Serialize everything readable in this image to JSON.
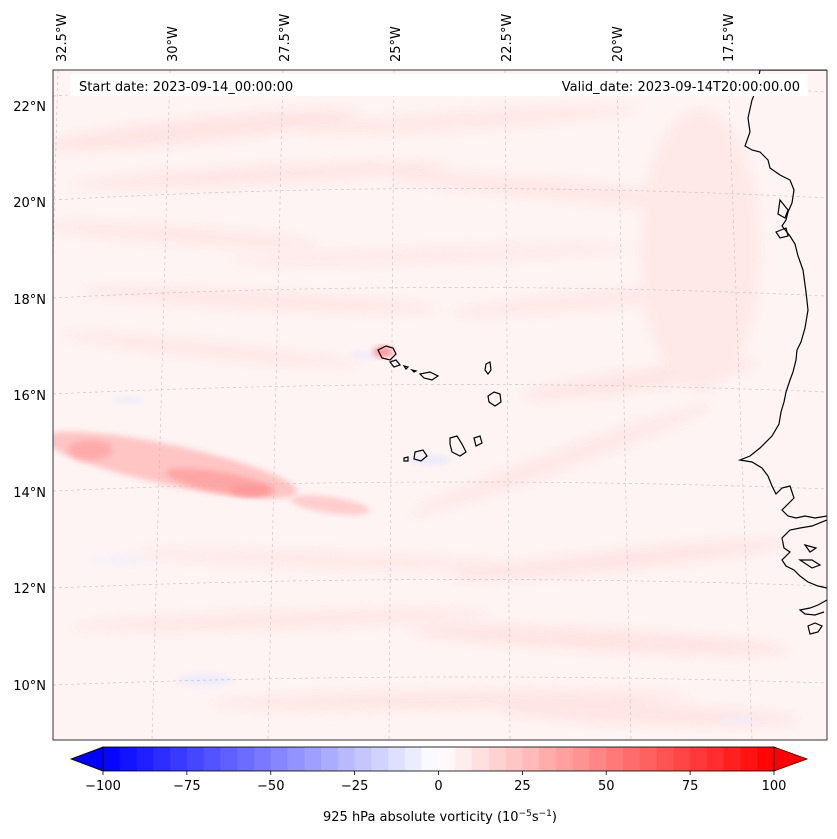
{
  "map": {
    "start_date": "Start date: 2023-09-14_00:00:00",
    "valid_date": "Valid_date: 2023-09-14T20:00:00.00",
    "longitude_labels": [
      "32.5°W",
      "30°W",
      "27.5°W",
      "25°W",
      "22.5°W",
      "20°W",
      "17.5°W"
    ],
    "latitude_labels": [
      "22°N",
      "20°N",
      "18°N",
      "16°N",
      "14°N",
      "12°N",
      "10°N"
    ],
    "field": "925 hPa absolute vorticity",
    "features": [
      "Cape Verde islands",
      "West African coastline"
    ]
  },
  "colorbar": {
    "label": "925 hPa absolute vorticity (10",
    "label_exp1": "−5",
    "label_mid": "s",
    "label_exp2": "−1",
    "label_end": ")",
    "min": -100,
    "max": 100,
    "tick_values": [
      -100,
      -75,
      -50,
      -25,
      0,
      25,
      50,
      75,
      100
    ],
    "tick_labels": [
      "−100",
      "−75",
      "−50",
      "−25",
      "0",
      "25",
      "50",
      "75",
      "100"
    ],
    "extend": "both",
    "low_color": "#0000ff",
    "mid_color": "#ffffff",
    "high_color": "#ff0000"
  }
}
